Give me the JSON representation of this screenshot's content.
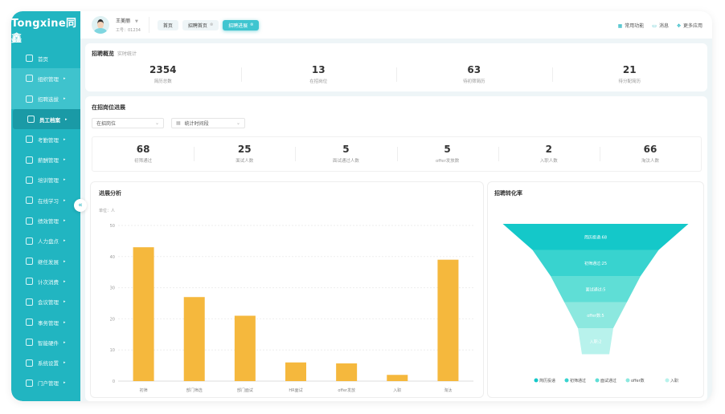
{
  "brand": {
    "logo": "Tongxine同鑫"
  },
  "sidebar": {
    "items": [
      {
        "label": "首页",
        "icon": "home-icon",
        "arrow": false
      },
      {
        "label": "组织管理",
        "icon": "org-icon",
        "arrow": true
      },
      {
        "label": "招聘选拔",
        "icon": "recruit-icon",
        "arrow": true
      },
      {
        "label": "员工档案",
        "icon": "employee-icon",
        "arrow": true
      },
      {
        "label": "考勤管理",
        "icon": "attendance-icon",
        "arrow": true
      },
      {
        "label": "薪酬管理",
        "icon": "salary-icon",
        "arrow": true
      },
      {
        "label": "培训管理",
        "icon": "training-icon",
        "arrow": true
      },
      {
        "label": "在线学习",
        "icon": "study-icon",
        "arrow": true
      },
      {
        "label": "绩效管理",
        "icon": "performance-icon",
        "arrow": true
      },
      {
        "label": "人力盘点",
        "icon": "person-icon",
        "arrow": true
      },
      {
        "label": "继任发展",
        "icon": "succession-icon",
        "arrow": true
      },
      {
        "label": "计次消费",
        "icon": "consume-icon",
        "arrow": true
      },
      {
        "label": "会议管理",
        "icon": "meeting-icon",
        "arrow": true
      },
      {
        "label": "事务管理",
        "icon": "affairs-icon",
        "arrow": true
      },
      {
        "label": "智能硬件",
        "icon": "hardware-icon",
        "arrow": true
      },
      {
        "label": "系统设置",
        "icon": "settings-icon",
        "arrow": true
      },
      {
        "label": "门户管理",
        "icon": "portal-icon",
        "arrow": true
      }
    ],
    "collapse_icon": "double-chevron-left-icon"
  },
  "header": {
    "user_name": "王美丽",
    "employee_id": "工号：01234",
    "tabs": [
      {
        "label": "首页"
      },
      {
        "label": "招聘首页"
      },
      {
        "label": "招聘进展"
      }
    ],
    "actions": [
      {
        "label": "常用功能",
        "icon": "grid-icon"
      },
      {
        "label": "消息",
        "icon": "message-icon"
      },
      {
        "label": "更多应用",
        "icon": "apps-icon"
      }
    ]
  },
  "overview": {
    "title": "招聘概览",
    "subtitle": "实时统计",
    "stats": [
      {
        "value": "2354",
        "label": "简历总数"
      },
      {
        "value": "13",
        "label": "在招岗位"
      },
      {
        "value": "63",
        "label": "待初筛简历"
      },
      {
        "value": "21",
        "label": "待分配简历"
      }
    ]
  },
  "progress": {
    "title": "在招岗位进展",
    "position_select": "在招岗位",
    "date_select": "统计时间段",
    "stats": [
      {
        "value": "68",
        "label": "初筛通过"
      },
      {
        "value": "25",
        "label": "面试人数"
      },
      {
        "value": "5",
        "label": "面试通过人数"
      },
      {
        "value": "5",
        "label": "offer发放数"
      },
      {
        "value": "2",
        "label": "入职人数"
      },
      {
        "value": "66",
        "label": "淘汰人数"
      }
    ]
  },
  "chart_data": [
    {
      "type": "bar",
      "title": "进展分析",
      "unit_label": "单位：人",
      "categories": [
        "初筛",
        "部门筛选",
        "部门面试",
        "HR面试",
        "offer发放",
        "入职",
        "淘汰"
      ],
      "values": [
        43,
        27,
        21,
        6,
        5.7,
        2,
        39
      ],
      "ylim": [
        0,
        50
      ],
      "yticks": [
        0,
        10,
        20,
        30,
        40,
        50
      ],
      "grid": true,
      "color": "#f5b83d"
    },
    {
      "type": "funnel",
      "title": "招聘转化率",
      "categories": [
        "简历投递",
        "初筛通过",
        "面试通过",
        "offer数",
        "入职"
      ],
      "values": [
        68,
        25,
        5,
        5,
        2
      ],
      "labels": [
        "简历投递:68",
        "初筛通过:25",
        "面试通过:5",
        "offer数:5",
        "入职:2"
      ],
      "colors": [
        "#14c8c9",
        "#38d3cf",
        "#5fded6",
        "#8ce8df",
        "#b8f2ec"
      ],
      "legend": "bottom"
    }
  ]
}
